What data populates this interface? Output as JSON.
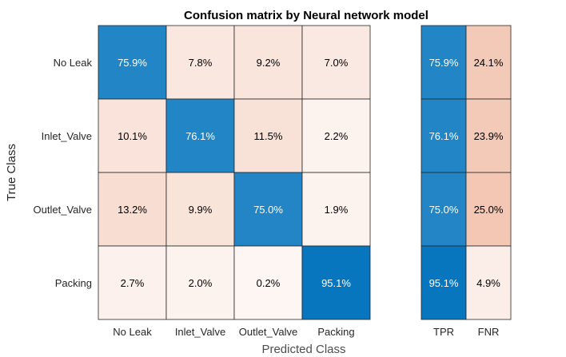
{
  "chart_data": {
    "type": "heatmap",
    "title": "Confusion matrix by Neural network model",
    "xlabel": "Predicted Class",
    "ylabel": "True Class",
    "classes": [
      "No Leak",
      "Inlet_Valve",
      "Outlet_Valve",
      "Packing"
    ],
    "matrix": [
      [
        "75.9%",
        "7.8%",
        "9.2%",
        "7.0%"
      ],
      [
        "10.1%",
        "76.1%",
        "11.5%",
        "2.2%"
      ],
      [
        "13.2%",
        "9.9%",
        "75.0%",
        "1.9%"
      ],
      [
        "2.7%",
        "2.0%",
        "0.2%",
        "95.1%"
      ]
    ],
    "summary_columns": [
      "TPR",
      "FNR"
    ],
    "summary": [
      [
        "75.9%",
        "24.1%"
      ],
      [
        "76.1%",
        "23.9%"
      ],
      [
        "75.0%",
        "25.0%"
      ],
      [
        "95.1%",
        "4.9%"
      ]
    ],
    "colors": {
      "high": "#0072bd",
      "low": "#d95319",
      "text_dark": "#000000",
      "text_light": "#ffffff",
      "grid": "#262626"
    }
  }
}
